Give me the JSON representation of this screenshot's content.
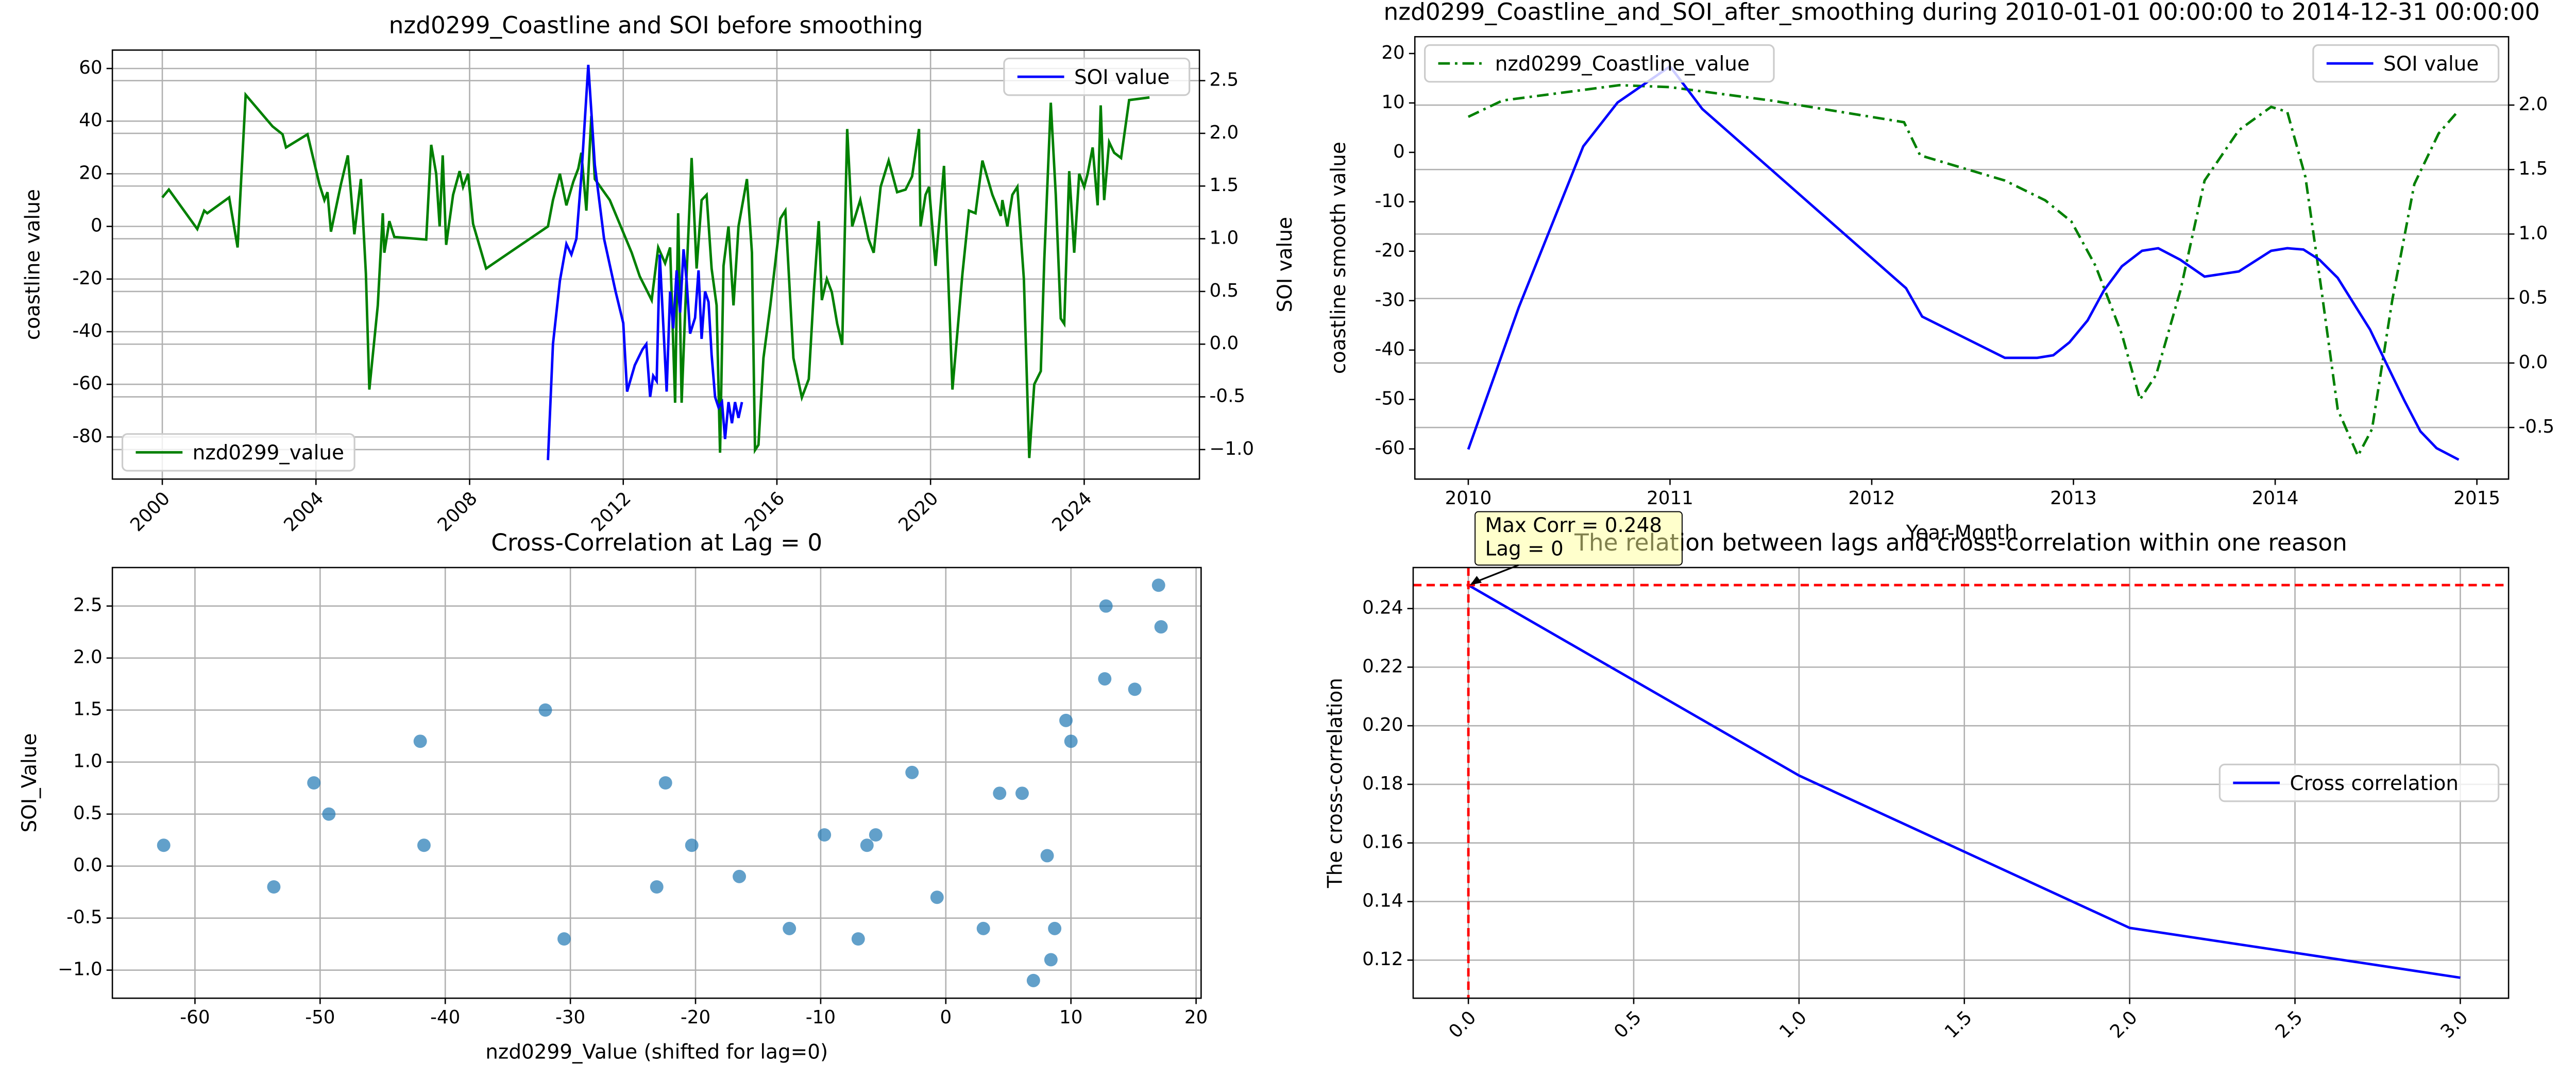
{
  "chart_data": [
    {
      "type": "line",
      "title": "nzd0299_Coastline and SOI before smoothing",
      "ylabel": "coastline value",
      "y2label": "SOI value",
      "xlim": [
        1998.7,
        2027.0
      ],
      "xticks": [
        2000,
        2004,
        2008,
        2012,
        2016,
        2020,
        2024
      ],
      "xtick_rotation": 45,
      "ylim": [
        -96,
        67
      ],
      "yticks": [
        -80,
        -60,
        -40,
        -20,
        0,
        20,
        40,
        60
      ],
      "y2lim": [
        -1.28,
        2.79
      ],
      "y2ticks": [
        {
          "value": -1,
          "label": "−1.0"
        },
        -0.5,
        {
          "value": 0,
          "label": "0.0"
        },
        0.5,
        {
          "value": 1,
          "label": "1.0"
        },
        1.5,
        {
          "value": 2,
          "label": "2.0"
        },
        2.5
      ],
      "grid": [
        "x",
        "y",
        "y2"
      ],
      "series": [
        {
          "name": "nzd0299_value",
          "color": "#008000",
          "linestyle": "solid",
          "legend": "lower left",
          "x": [
            2000.0,
            2000.17,
            2000.91,
            2001.09,
            2001.17,
            2001.74,
            2001.96,
            2002.17,
            2002.87,
            2003.13,
            2003.22,
            2003.78,
            2004.09,
            2004.22,
            2004.3,
            2004.39,
            2004.65,
            2004.83,
            2005.0,
            2005.17,
            2005.3,
            2005.39,
            2005.61,
            2005.74,
            2005.78,
            2005.91,
            2006.04,
            2006.87,
            2007.0,
            2007.13,
            2007.22,
            2007.3,
            2007.39,
            2007.57,
            2007.74,
            2007.83,
            2007.96,
            2008.09,
            2008.43,
            2010.04,
            2010.17,
            2010.35,
            2010.52,
            2010.7,
            2010.83,
            2010.91,
            2011.04,
            2011.17,
            2011.26,
            2011.65,
            2012.22,
            2012.43,
            2012.74,
            2012.91,
            2013.09,
            2013.22,
            2013.35,
            2013.43,
            2013.52,
            2013.65,
            2013.78,
            2013.91,
            2014.04,
            2014.17,
            2014.3,
            2014.43,
            2014.52,
            2014.61,
            2014.74,
            2014.87,
            2015.0,
            2015.22,
            2015.35,
            2015.43,
            2015.52,
            2015.65,
            2015.83,
            2016.09,
            2016.22,
            2016.43,
            2016.65,
            2016.83,
            2016.96,
            2017.09,
            2017.17,
            2017.3,
            2017.43,
            2017.57,
            2017.7,
            2017.83,
            2017.96,
            2018.17,
            2018.39,
            2018.52,
            2018.7,
            2018.91,
            2019.13,
            2019.35,
            2019.52,
            2019.7,
            2019.74,
            2019.87,
            2019.96,
            2020.13,
            2020.35,
            2020.57,
            2020.83,
            2021.0,
            2021.17,
            2021.35,
            2021.61,
            2021.83,
            2021.87,
            2022.0,
            2022.13,
            2022.26,
            2022.43,
            2022.57,
            2022.7,
            2022.87,
            2022.96,
            2023.13,
            2023.26,
            2023.39,
            2023.48,
            2023.61,
            2023.74,
            2023.87,
            2024.0,
            2024.09,
            2024.22,
            2024.35,
            2024.43,
            2024.52,
            2024.65,
            2024.78,
            2024.96,
            2025.17,
            2025.7
          ],
          "values": [
            11,
            14,
            -1,
            6,
            5,
            11,
            -8,
            50,
            38,
            35,
            30,
            35,
            16,
            10,
            13,
            -2,
            16,
            27,
            -3,
            18,
            -18,
            -62,
            -30,
            5,
            -10,
            2,
            -4,
            -5,
            31,
            20,
            0,
            27,
            -7,
            12,
            21,
            15,
            20,
            1,
            -16,
            0,
            10,
            20,
            8,
            17,
            22,
            28,
            6,
            42,
            18,
            10,
            -10,
            -19,
            -28,
            -8,
            -14,
            -8,
            -67,
            5,
            -67,
            -18,
            26,
            -16,
            10,
            12,
            -16,
            -30,
            -86,
            -15,
            0,
            -30,
            0,
            18,
            -10,
            -85,
            -83,
            -50,
            -30,
            3,
            6,
            -50,
            -65,
            -58,
            -25,
            2,
            -28,
            -20,
            -25,
            -37,
            -45,
            37,
            0,
            10,
            -5,
            -10,
            15,
            25,
            13,
            14,
            19,
            37,
            0,
            12,
            15,
            -15,
            23,
            -62,
            -18,
            6,
            5,
            25,
            12,
            4,
            10,
            0,
            12,
            15,
            -20,
            -88,
            -60,
            -55,
            -13,
            47,
            12,
            -35,
            -37,
            21,
            -10,
            20,
            15,
            20,
            30,
            8,
            46,
            10,
            32,
            28,
            26,
            48,
            49
          ]
        },
        {
          "name": "SOI value",
          "color": "#0000ff",
          "linestyle": "solid",
          "legend": "upper right",
          "axis": "y2",
          "x": [
            2010.04,
            2010.17,
            2010.35,
            2010.52,
            2010.65,
            2010.78,
            2010.91,
            2011.09,
            2011.26,
            2011.5,
            2011.8,
            2012.0,
            2012.1,
            2012.3,
            2012.5,
            2012.6,
            2012.7,
            2012.78,
            2012.87,
            2012.95,
            2013.04,
            2013.13,
            2013.22,
            2013.3,
            2013.39,
            2013.48,
            2013.57,
            2013.65,
            2013.74,
            2013.87,
            2013.96,
            2014.04,
            2014.13,
            2014.22,
            2014.3,
            2014.39,
            2014.48,
            2014.57,
            2014.65,
            2014.74,
            2014.83,
            2014.91,
            2015.0,
            2015.09
          ],
          "values": [
            -1.1,
            0.0,
            0.6,
            0.95,
            0.85,
            1.0,
            1.6,
            2.65,
            1.7,
            1.0,
            0.5,
            0.2,
            -0.45,
            -0.2,
            -0.05,
            0.0,
            -0.5,
            -0.3,
            -0.35,
            0.85,
            0.2,
            -0.45,
            0.5,
            0.15,
            0.7,
            0.3,
            0.9,
            0.6,
            0.1,
            0.25,
            0.7,
            0.05,
            0.5,
            0.4,
            -0.1,
            -0.5,
            -0.6,
            -0.55,
            -0.9,
            -0.55,
            -0.75,
            -0.55,
            -0.7,
            -0.55
          ]
        }
      ]
    },
    {
      "type": "line",
      "title": "nzd0299_Coastline_and_SOI_after_smoothing during 2010-01-01 00:00:00 to 2014-12-31 00:00:00",
      "xlabel": "Year-Month",
      "ylabel": "coastline smooth value",
      "y2label": "SOI smooth value",
      "xlim": [
        2009.735,
        2015.157
      ],
      "xticks": [
        2010,
        2011,
        2012,
        2013,
        2014,
        2015
      ],
      "ylim": [
        -66.1,
        23.4
      ],
      "yticks": [
        -60,
        -50,
        -40,
        -30,
        -20,
        -10,
        0,
        10,
        20
      ],
      "y2lim": [
        -0.9,
        2.53
      ],
      "y2ticks": [
        -0.5,
        {
          "value": 0,
          "label": "0.0"
        },
        0.5,
        {
          "value": 1,
          "label": "1.0"
        },
        1.5,
        {
          "value": 2,
          "label": "2.0"
        }
      ],
      "grid": [
        "y2"
      ],
      "series": [
        {
          "name": "nzd0299_Coastline_value",
          "color": "#008000",
          "linestyle": "dashdot",
          "legend": "upper left",
          "x": [
            2010.0,
            2010.17,
            2010.75,
            2011.0,
            2011.5,
            2012.16,
            2012.24,
            2012.66,
            2012.86,
            2012.99,
            2013.11,
            2013.24,
            2013.33,
            2013.41,
            2013.53,
            2013.65,
            2013.82,
            2013.98,
            2014.06,
            2014.15,
            2014.23,
            2014.31,
            2014.41,
            2014.48,
            2014.58,
            2014.69,
            2014.81,
            2014.91
          ],
          "values": [
            7.2,
            10.5,
            13.6,
            13.2,
            10.5,
            6.1,
            -0.6,
            -5.7,
            -9.7,
            -14,
            -23,
            -36.8,
            -50,
            -45,
            -28,
            -5.7,
            4.5,
            9.2,
            8.2,
            -5,
            -28,
            -52,
            -61.4,
            -56,
            -30,
            -6.4,
            3.8,
            8.5
          ]
        },
        {
          "name": "SOI value",
          "color": "#0000ff",
          "linestyle": "solid",
          "legend": "upper right",
          "axis": "y2",
          "x": [
            2010.0,
            2010.25,
            2010.57,
            2010.74,
            2011.0,
            2011.16,
            2012.17,
            2012.25,
            2012.66,
            2012.82,
            2012.9,
            2012.98,
            2013.07,
            2013.15,
            2013.24,
            2013.34,
            2013.42,
            2013.53,
            2013.65,
            2013.82,
            2013.98,
            2014.06,
            2014.14,
            2014.22,
            2014.31,
            2014.39,
            2014.47,
            2014.55,
            2014.64,
            2014.72,
            2014.8,
            2014.91
          ],
          "values": [
            -0.67,
            0.43,
            1.68,
            2.02,
            2.3,
            1.97,
            0.58,
            0.36,
            0.04,
            0.04,
            0.06,
            0.16,
            0.33,
            0.56,
            0.75,
            0.87,
            0.89,
            0.8,
            0.67,
            0.71,
            0.87,
            0.89,
            0.88,
            0.8,
            0.66,
            0.46,
            0.26,
            0.0,
            -0.29,
            -0.53,
            -0.66,
            -0.75
          ]
        }
      ]
    },
    {
      "type": "scatter",
      "title": "Cross-Correlation at Lag = 0",
      "xlabel": "nzd0299_Value (shifted for lag=0)",
      "ylabel": "SOI_Value",
      "xlim": [
        -66.6,
        20.4
      ],
      "xticks": [
        -60,
        -50,
        -40,
        -30,
        -20,
        -10,
        0,
        10,
        20
      ],
      "ylim": [
        -1.27,
        2.87
      ],
      "yticks": [
        {
          "value": -1,
          "label": "−1.0"
        },
        -0.5,
        {
          "value": 0,
          "label": "0.0"
        },
        0.5,
        {
          "value": 1,
          "label": "1.0"
        },
        1.5,
        {
          "value": 2,
          "label": "2.0"
        },
        2.5
      ],
      "grid": [
        "x",
        "y"
      ],
      "series": [
        {
          "color": "#1f77b4",
          "x": [
            -62.5,
            -53.7,
            -50.5,
            -49.3,
            -42,
            -41.7,
            -32,
            -30.5,
            -23.1,
            -22.4,
            -20.3,
            -16.5,
            -12.5,
            -9.7,
            -7,
            -6.3,
            -5.6,
            -2.7,
            -0.7,
            3,
            4.3,
            6.1,
            7,
            8.1,
            8.4,
            8.7,
            9.6,
            10,
            12.8,
            12.7,
            15.1,
            17,
            17.2
          ],
          "values": [
            0.2,
            -0.2,
            0.8,
            0.5,
            1.2,
            0.2,
            1.5,
            -0.7,
            -0.2,
            0.8,
            0.2,
            -0.1,
            -0.6,
            0.3,
            -0.7,
            0.2,
            0.3,
            0.9,
            -0.3,
            -0.6,
            0.7,
            0.7,
            -1.1,
            0.1,
            -0.9,
            -0.6,
            1.4,
            1.2,
            2.5,
            1.8,
            1.7,
            2.7,
            2.3
          ]
        }
      ]
    },
    {
      "type": "line",
      "title": "The relation between lags and cross-correlation within one reason",
      "ylabel": "The cross-correlation",
      "xlim": [
        -0.167,
        3.146
      ],
      "xticks": [
        {
          "value": 0,
          "label": "0.0"
        },
        0.5,
        {
          "value": 1,
          "label": "1.0"
        },
        1.5,
        {
          "value": 2,
          "label": "2.0"
        },
        2.5,
        {
          "value": 3,
          "label": "3.0"
        }
      ],
      "xtick_rotation": 45,
      "ylim": [
        0.107,
        0.254
      ],
      "yticks": [
        0.12,
        0.14,
        0.16,
        0.18,
        {
          "value": 0.2,
          "label": "0.20"
        },
        0.22,
        0.24
      ],
      "grid": [
        "x",
        "y"
      ],
      "hline": {
        "y": 0.248,
        "color": "#ff0000"
      },
      "vline": {
        "x": 0,
        "color": "#ff0000"
      },
      "annotation": {
        "text": [
          "Max Corr = 0.248",
          "Lag = 0"
        ],
        "x": 0,
        "y": 0.248,
        "color": "#ffff99"
      },
      "series": [
        {
          "name": "Cross correlation",
          "color": "#0000ff",
          "linestyle": "solid",
          "legend": "center right",
          "x": [
            0,
            1,
            2,
            3
          ],
          "values": [
            0.248,
            0.183,
            0.131,
            0.114
          ]
        }
      ]
    }
  ]
}
